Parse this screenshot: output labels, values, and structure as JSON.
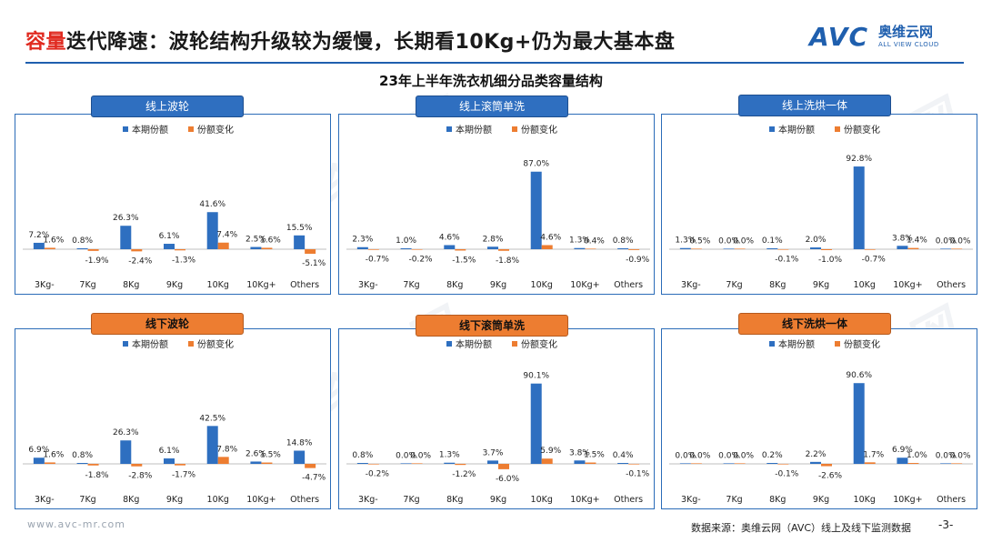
{
  "header": {
    "title_highlight": "容量",
    "title_rest": "迭代降速：波轮结构升级较为缓慢，长期看10Kg+仍为最大基本盘",
    "logo_text": "AVC",
    "logo_cn": "奥维云网",
    "logo_en": "ALL VIEW CLOUD"
  },
  "subtitle": "23年上半年洗衣机细分品类容量结构",
  "footer": {
    "site": "www.avc-mr.com",
    "source": "数据来源：奥维云网（AVC）线上及线下监测数据",
    "page": "-3-"
  },
  "colors": {
    "share": "#2e6fc0",
    "change": "#ed7d31",
    "online_label": "#2f6fc0",
    "offline_label": "#ed7d31"
  },
  "legend": {
    "share": "本期份额",
    "change": "份额变化"
  },
  "chart_data": [
    {
      "type": "bar",
      "channel": "online",
      "title": "线上波轮",
      "categories": [
        "3Kg-",
        "7Kg",
        "8Kg",
        "9Kg",
        "10Kg",
        "10Kg+",
        "Others"
      ],
      "series": [
        {
          "name": "本期份额",
          "values": [
            7.2,
            0.8,
            26.3,
            6.1,
            41.6,
            2.5,
            15.5
          ]
        },
        {
          "name": "份额变化",
          "values": [
            1.6,
            -1.9,
            -2.4,
            -1.3,
            7.4,
            1.6,
            -5.1
          ]
        }
      ],
      "ylabel": "%",
      "ylim": [
        -6,
        100
      ]
    },
    {
      "type": "bar",
      "channel": "online",
      "title": "线上滚筒单洗",
      "categories": [
        "3Kg-",
        "7Kg",
        "8Kg",
        "9Kg",
        "10Kg",
        "10Kg+",
        "Others"
      ],
      "series": [
        {
          "name": "本期份额",
          "values": [
            2.3,
            1.0,
            4.6,
            2.8,
            87.0,
            1.3,
            0.8
          ]
        },
        {
          "name": "份额变化",
          "values": [
            -0.7,
            -0.2,
            -1.5,
            -1.8,
            4.6,
            0.4,
            -0.9
          ]
        }
      ],
      "ylabel": "%",
      "ylim": [
        -6,
        100
      ]
    },
    {
      "type": "bar",
      "channel": "online",
      "title": "线上洗烘一体",
      "categories": [
        "3Kg-",
        "7Kg",
        "8Kg",
        "9Kg",
        "10Kg",
        "10Kg+",
        "Others"
      ],
      "series": [
        {
          "name": "本期份额",
          "values": [
            1.3,
            0.0,
            0.1,
            2.0,
            92.8,
            3.8,
            0.0
          ]
        },
        {
          "name": "份额变化",
          "values": [
            0.5,
            0.0,
            -0.1,
            -1.0,
            -0.7,
            1.4,
            0.0
          ]
        }
      ],
      "ylabel": "%",
      "ylim": [
        -6,
        100
      ]
    },
    {
      "type": "bar",
      "channel": "offline",
      "title": "线下波轮",
      "categories": [
        "3Kg-",
        "7Kg",
        "8Kg",
        "9Kg",
        "10Kg",
        "10Kg+",
        "Others"
      ],
      "series": [
        {
          "name": "本期份额",
          "values": [
            6.9,
            0.8,
            26.3,
            6.1,
            42.5,
            2.6,
            14.8
          ]
        },
        {
          "name": "份额变化",
          "values": [
            1.6,
            -1.8,
            -2.8,
            -1.7,
            7.8,
            1.5,
            -4.7
          ]
        }
      ],
      "ylabel": "%",
      "ylim": [
        -6,
        100
      ]
    },
    {
      "type": "bar",
      "channel": "offline",
      "title": "线下滚筒单洗",
      "categories": [
        "3Kg-",
        "7Kg",
        "8Kg",
        "9Kg",
        "10Kg",
        "10Kg+",
        "Others"
      ],
      "series": [
        {
          "name": "本期份额",
          "values": [
            0.8,
            0.0,
            1.3,
            3.7,
            90.1,
            3.8,
            0.4
          ]
        },
        {
          "name": "份额变化",
          "values": [
            -0.2,
            0.0,
            -1.2,
            -6.0,
            5.9,
            1.5,
            -0.1
          ]
        }
      ],
      "ylabel": "%",
      "ylim": [
        -6,
        100
      ]
    },
    {
      "type": "bar",
      "channel": "offline",
      "title": "线下洗烘一体",
      "categories": [
        "3Kg-",
        "7Kg",
        "8Kg",
        "9Kg",
        "10Kg",
        "10Kg+",
        "Others"
      ],
      "series": [
        {
          "name": "本期份额",
          "values": [
            0.0,
            0.0,
            0.2,
            2.2,
            90.6,
            6.9,
            0.0
          ]
        },
        {
          "name": "份额变化",
          "values": [
            0.0,
            0.0,
            -0.1,
            -2.6,
            1.7,
            1.0,
            0.0
          ]
        }
      ],
      "ylabel": "%",
      "ylim": [
        -6,
        100
      ]
    }
  ]
}
